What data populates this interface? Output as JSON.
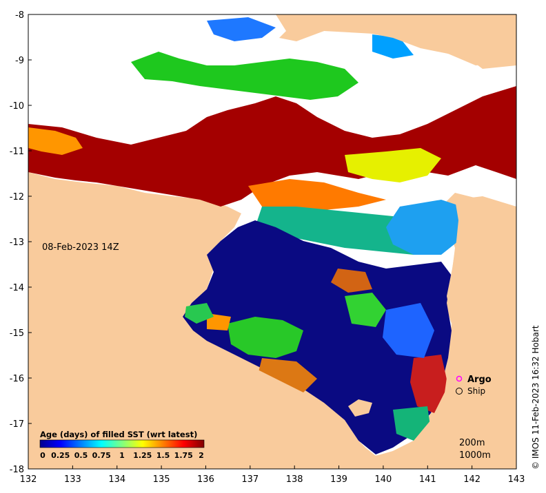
{
  "map": {
    "date_label": "08-Feb-2023 14Z",
    "credit": "© IMOS 11-Feb-2023 16:32 Hobart",
    "x_axis": {
      "ticks": [
        "132",
        "133",
        "134",
        "135",
        "136",
        "137",
        "138",
        "139",
        "140",
        "141",
        "142",
        "143"
      ]
    },
    "y_axis": {
      "ticks": [
        "-8",
        "-9",
        "-10",
        "-11",
        "-12",
        "-13",
        "-14",
        "-15",
        "-16",
        "-17",
        "-18"
      ]
    },
    "lon_range": [
      132,
      143
    ],
    "lat_range": [
      -18,
      -8
    ],
    "colors": {
      "land": "#f9cb9c",
      "no_data": "#ffffff",
      "argo_marker": "#ff00ff",
      "ship_marker": "#000000"
    },
    "legend": {
      "title": "Age (days) of filled SST (wrt latest)",
      "ticks": [
        "0",
        "0.25",
        "0.5",
        "0.75",
        "1",
        "1.25",
        "1.5",
        "1.75",
        "2"
      ],
      "range": [
        0,
        2
      ]
    },
    "markers": {
      "argo_label": "Argo",
      "ship_label": "Ship"
    },
    "contours": {
      "label_200": "200m",
      "label_1000": "1000m"
    }
  }
}
